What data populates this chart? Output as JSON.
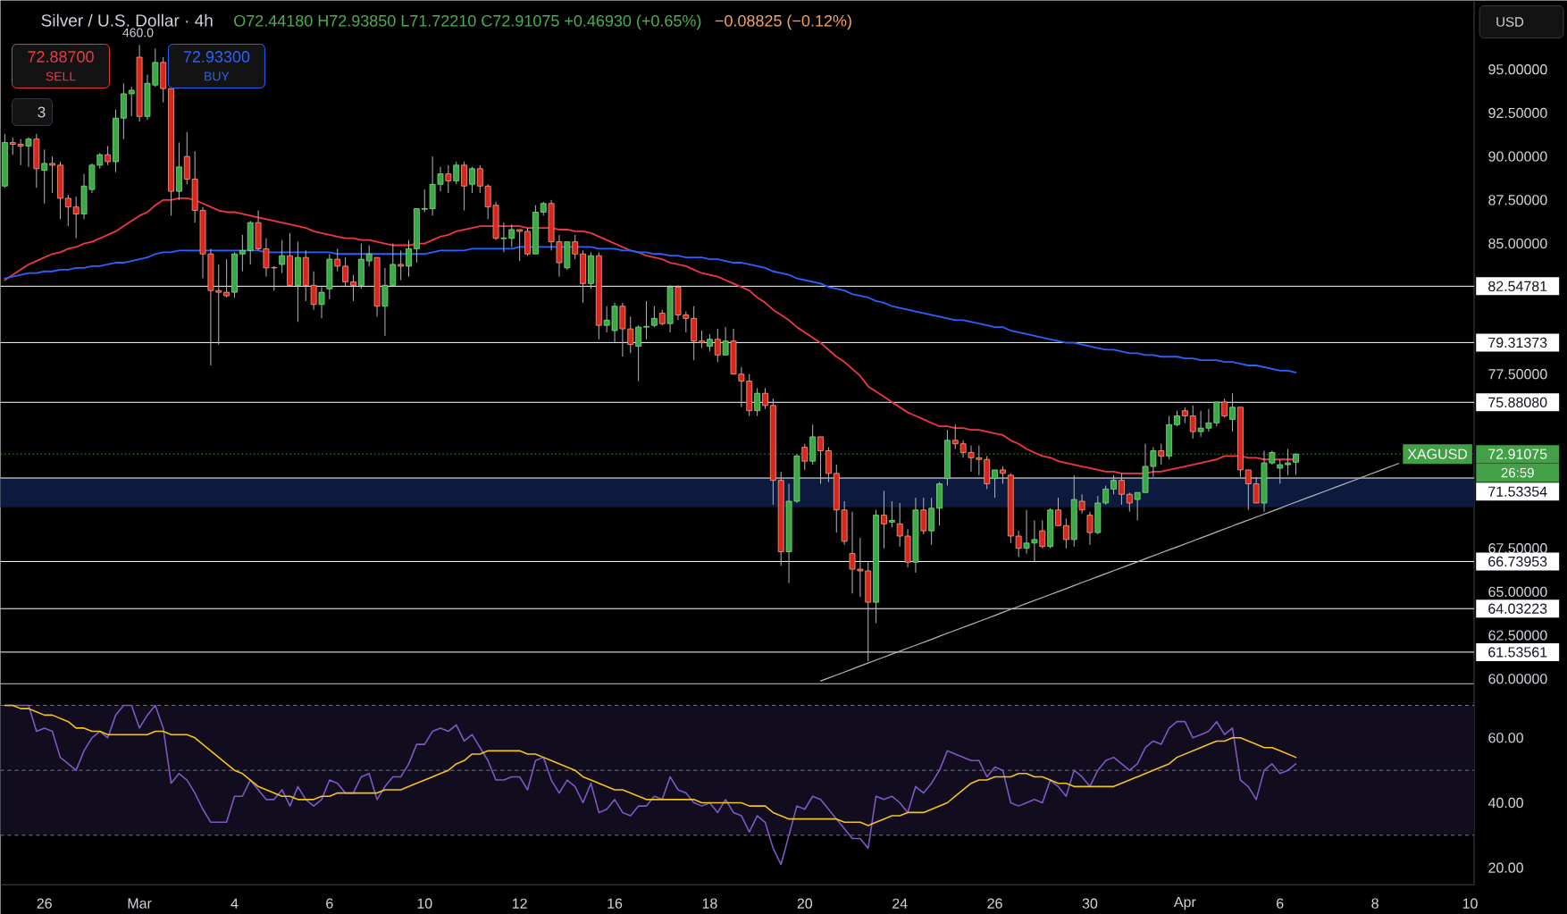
{
  "chart_data": [
    {
      "type": "candlestick",
      "title": "Silver / U.S. Dollar · 4h",
      "categories": [
        null,
        null,
        null,
        null,
        null,
        null,
        null,
        null,
        null,
        null,
        null,
        null,
        null,
        null,
        null,
        null,
        null,
        null,
        null,
        null,
        null,
        null,
        null,
        null,
        null,
        null,
        null,
        null,
        null,
        null,
        null,
        null,
        null,
        null,
        null,
        null,
        null,
        null,
        null,
        null,
        null,
        null,
        null,
        null,
        null,
        null,
        null,
        null,
        null,
        null,
        null,
        null,
        null,
        null,
        null,
        null,
        null,
        null,
        null,
        null,
        null,
        null,
        null,
        null,
        null,
        null,
        null,
        null,
        null,
        null,
        null,
        null,
        null,
        null,
        null,
        null,
        null,
        null,
        null,
        null,
        null,
        null,
        null,
        null,
        null,
        null,
        null,
        null,
        null,
        null,
        null,
        null,
        null,
        null,
        null,
        null,
        null,
        null,
        null,
        null,
        null,
        null,
        null,
        null,
        null,
        null,
        null,
        null,
        null,
        null,
        null,
        null,
        null,
        null,
        null,
        null,
        null,
        null,
        null,
        null,
        null,
        null,
        null,
        null,
        null,
        null,
        null,
        null,
        null,
        null,
        null,
        null,
        null,
        null,
        null,
        null,
        null,
        null,
        null,
        null,
        null,
        null,
        null,
        null,
        null,
        null,
        null,
        null,
        null,
        null,
        null,
        null,
        null,
        null,
        null,
        null,
        null,
        null,
        null,
        null,
        null,
        null,
        null,
        null,
        null,
        null,
        null,
        null,
        null,
        null,
        null,
        null,
        null,
        null,
        null,
        null,
        null,
        null,
        null,
        null,
        null,
        null,
        null,
        null,
        null,
        null
      ],
      "ohlc": [
        [
          88.3,
          91.3,
          88.2,
          90.8
        ],
        [
          90.8,
          91.1,
          90.1,
          90.7
        ],
        [
          90.7,
          91.0,
          89.5,
          90.6
        ],
        [
          90.6,
          91.1,
          89.4,
          91.0
        ],
        [
          91.0,
          91.3,
          88.2,
          89.3
        ],
        [
          89.2,
          90.4,
          87.3,
          89.6
        ],
        [
          89.6,
          90.0,
          87.9,
          89.5
        ],
        [
          89.5,
          89.7,
          86.4,
          87.6
        ],
        [
          87.6,
          87.8,
          86.0,
          87.1
        ],
        [
          87.1,
          87.7,
          85.3,
          86.7
        ],
        [
          86.7,
          89.0,
          86.4,
          88.3
        ],
        [
          88.1,
          89.6,
          87.9,
          89.5
        ],
        [
          89.5,
          90.2,
          89.3,
          90.1
        ],
        [
          90.1,
          90.6,
          89.5,
          89.7
        ],
        [
          89.7,
          92.7,
          89.1,
          92.2
        ],
        [
          92.2,
          94.2,
          91.0,
          93.6
        ],
        [
          93.6,
          94.0,
          92.3,
          93.8
        ],
        [
          95.7,
          96.4,
          92.0,
          92.3
        ],
        [
          92.3,
          94.7,
          92.1,
          94.2
        ],
        [
          94.1,
          96.2,
          94.0,
          95.4
        ],
        [
          95.4,
          95.7,
          93.1,
          93.9
        ],
        [
          93.9,
          93.9,
          86.6,
          88.0
        ],
        [
          88.0,
          90.8,
          87.5,
          89.4
        ],
        [
          90.0,
          91.4,
          88.4,
          88.7
        ],
        [
          88.7,
          90.3,
          86.2,
          86.9
        ],
        [
          86.9,
          87.1,
          83.0,
          84.4
        ],
        [
          84.4,
          84.7,
          78.0,
          82.3
        ],
        [
          82.3,
          83.8,
          79.2,
          82.2
        ],
        [
          82.2,
          84.1,
          81.9,
          82.0
        ],
        [
          82.2,
          84.5,
          81.9,
          84.4
        ],
        [
          84.4,
          85.5,
          83.4,
          84.6
        ],
        [
          84.6,
          86.3,
          83.8,
          86.2
        ],
        [
          86.2,
          86.9,
          84.6,
          84.7
        ],
        [
          84.7,
          85.3,
          83.1,
          83.6
        ],
        [
          83.62,
          83.7,
          82.3,
          83.6
        ],
        [
          83.8,
          85.2,
          83.3,
          84.3
        ],
        [
          84.3,
          85.6,
          82.5,
          82.6
        ],
        [
          82.6,
          85.1,
          80.5,
          84.2
        ],
        [
          84.2,
          84.6,
          81.7,
          82.6
        ],
        [
          82.6,
          83.4,
          81.2,
          81.5
        ],
        [
          81.5,
          82.5,
          80.7,
          82.2
        ],
        [
          82.4,
          84.4,
          81.8,
          84.1
        ],
        [
          84.1,
          84.7,
          83.4,
          83.7
        ],
        [
          83.7,
          84.2,
          82.5,
          82.8
        ],
        [
          82.8,
          83.2,
          81.7,
          82.6
        ],
        [
          82.6,
          85.0,
          82.4,
          84.1
        ],
        [
          84.0,
          84.9,
          83.7,
          84.4
        ],
        [
          84.2,
          84.2,
          80.8,
          81.4
        ],
        [
          81.4,
          83.6,
          79.7,
          82.6
        ],
        [
          82.6,
          85.0,
          82.5,
          83.8
        ],
        [
          83.8,
          84.6,
          82.9,
          83.7
        ],
        [
          83.7,
          85.2,
          83.1,
          84.7
        ],
        [
          84.7,
          87.0,
          83.9,
          87.0
        ],
        [
          86.97,
          88.1,
          86.8,
          87.01
        ],
        [
          87.0,
          90.0,
          86.6,
          88.4
        ],
        [
          88.4,
          89.4,
          88.0,
          89.0
        ],
        [
          89.0,
          89.5,
          87.9,
          88.6
        ],
        [
          88.6,
          89.7,
          88.4,
          89.5
        ],
        [
          89.5,
          89.7,
          86.9,
          88.3
        ],
        [
          88.4,
          89.4,
          87.9,
          89.3
        ],
        [
          89.3,
          89.5,
          87.9,
          88.3
        ],
        [
          88.3,
          88.4,
          86.4,
          87.1
        ],
        [
          87.2,
          87.4,
          85.2,
          85.3
        ],
        [
          85.28,
          86.2,
          84.5,
          85.32
        ],
        [
          85.3,
          86.1,
          84.8,
          85.8
        ],
        [
          85.8,
          85.8,
          84.0,
          85.7
        ],
        [
          85.7,
          85.9,
          84.3,
          84.4
        ],
        [
          84.4,
          87.2,
          84.4,
          86.8
        ],
        [
          86.8,
          87.4,
          86.6,
          87.3
        ],
        [
          87.3,
          87.5,
          84.6,
          85.1
        ],
        [
          85.1,
          85.5,
          83.1,
          83.9
        ],
        [
          83.6,
          85.1,
          83.5,
          85.1
        ],
        [
          85.1,
          85.5,
          84.1,
          84.4
        ],
        [
          84.4,
          84.6,
          81.6,
          82.7
        ],
        [
          82.7,
          84.5,
          82.4,
          84.3
        ],
        [
          84.3,
          84.5,
          79.5,
          80.3
        ],
        [
          80.3,
          81.4,
          79.9,
          80.6
        ],
        [
          80.0,
          81.6,
          79.3,
          81.4
        ],
        [
          81.4,
          81.6,
          78.5,
          80.1
        ],
        [
          80.1,
          80.8,
          78.7,
          79.2
        ],
        [
          79.1,
          80.3,
          77.1,
          80.2
        ],
        [
          80.2,
          81.7,
          79.5,
          80.24
        ],
        [
          80.3,
          81.4,
          80.2,
          80.7
        ],
        [
          81.0,
          81.2,
          80.3,
          80.4
        ],
        [
          80.4,
          82.6,
          79.9,
          82.5
        ],
        [
          82.5,
          82.6,
          80.6,
          80.9
        ],
        [
          80.9,
          81.1,
          79.9,
          80.7
        ],
        [
          80.7,
          81.4,
          78.3,
          79.4
        ],
        [
          79.4,
          80.0,
          79.0,
          79.3
        ],
        [
          79.1,
          79.8,
          78.8,
          79.5
        ],
        [
          79.5,
          80.1,
          78.2,
          78.6
        ],
        [
          78.6,
          80.2,
          78.6,
          79.4
        ],
        [
          79.4,
          80.1,
          77.5,
          77.5
        ],
        [
          77.5,
          77.9,
          75.6,
          77.1
        ],
        [
          77.1,
          77.5,
          75.1,
          75.4
        ],
        [
          75.4,
          76.7,
          75.1,
          76.4
        ],
        [
          76.4,
          76.7,
          75.5,
          75.7
        ],
        [
          75.7,
          76.1,
          70.0,
          71.4
        ],
        [
          71.4,
          71.9,
          66.5,
          67.3
        ],
        [
          67.3,
          71.2,
          65.5,
          70.2
        ],
        [
          70.2,
          72.9,
          70.1,
          72.8
        ],
        [
          73.3,
          73.5,
          72.0,
          72.5
        ],
        [
          72.5,
          74.6,
          72.3,
          73.9
        ],
        [
          73.9,
          73.9,
          71.2,
          73.1
        ],
        [
          73.1,
          73.3,
          71.3,
          71.8
        ],
        [
          71.8,
          72.3,
          68.4,
          69.7
        ],
        [
          69.7,
          70.2,
          67.7,
          67.9
        ],
        [
          67.2,
          69.6,
          64.9,
          66.3
        ],
        [
          66.3,
          68.1,
          64.7,
          66.2
        ],
        [
          66.2,
          66.7,
          61.0,
          64.4
        ],
        [
          64.4,
          69.7,
          63.2,
          69.4
        ],
        [
          69.4,
          70.8,
          67.5,
          68.9
        ],
        [
          69.0,
          70.2,
          68.7,
          69.1
        ],
        [
          68.9,
          70.1,
          67.6,
          68.2
        ],
        [
          68.2,
          68.6,
          66.4,
          66.7
        ],
        [
          66.7,
          70.4,
          66.1,
          69.7
        ],
        [
          69.7,
          70.4,
          68.3,
          68.5
        ],
        [
          68.5,
          70.4,
          67.7,
          69.8
        ],
        [
          69.8,
          71.3,
          68.8,
          71.2
        ],
        [
          71.5,
          74.3,
          71.1,
          73.7
        ],
        [
          73.7,
          74.6,
          73.2,
          73.5
        ],
        [
          73.5,
          73.7,
          72.7,
          73.0
        ],
        [
          73.0,
          73.4,
          71.9,
          72.7
        ],
        [
          72.7,
          73.4,
          71.7,
          72.6
        ],
        [
          72.6,
          72.8,
          70.9,
          71.2
        ],
        [
          71.5,
          72.0,
          70.4,
          72.0
        ],
        [
          72.0,
          72.2,
          71.2,
          71.8
        ],
        [
          71.7,
          71.8,
          67.8,
          68.2
        ],
        [
          68.2,
          68.5,
          67.0,
          67.5
        ],
        [
          67.5,
          69.7,
          67.2,
          67.8
        ],
        [
          67.8,
          69.1,
          66.7,
          68.0
        ],
        [
          68.5,
          69.1,
          67.5,
          67.6
        ],
        [
          67.6,
          69.8,
          67.5,
          69.7
        ],
        [
          69.7,
          70.4,
          68.8,
          68.8
        ],
        [
          68.8,
          69.2,
          67.5,
          68.0
        ],
        [
          68.0,
          71.7,
          67.6,
          70.3
        ],
        [
          70.2,
          70.6,
          69.5,
          69.7
        ],
        [
          69.4,
          69.6,
          67.7,
          68.4
        ],
        [
          68.4,
          70.5,
          68.3,
          70.1
        ],
        [
          70.1,
          71.1,
          70.0,
          70.9
        ],
        [
          70.9,
          71.7,
          70.6,
          71.4
        ],
        [
          71.4,
          71.8,
          70.0,
          70.6
        ],
        [
          70.6,
          70.7,
          69.6,
          70.1
        ],
        [
          70.3,
          70.7,
          69.1,
          70.7
        ],
        [
          70.7,
          73.5,
          70.7,
          72.2
        ],
        [
          72.2,
          73.3,
          71.6,
          73.1
        ],
        [
          73.1,
          73.5,
          72.3,
          72.8
        ],
        [
          72.8,
          75.1,
          72.6,
          74.6
        ],
        [
          74.6,
          75.4,
          74.5,
          75.1
        ],
        [
          75.4,
          75.6,
          74.7,
          75.1
        ],
        [
          75.1,
          75.7,
          73.8,
          74.2
        ],
        [
          74.2,
          75.4,
          73.9,
          74.4
        ],
        [
          74.4,
          75.5,
          74.2,
          74.7
        ],
        [
          74.7,
          75.9,
          74.5,
          75.9
        ],
        [
          75.9,
          76.1,
          75.0,
          75.1
        ],
        [
          74.9,
          76.4,
          74.2,
          75.6
        ],
        [
          75.6,
          75.6,
          71.6,
          72.0
        ],
        [
          72.0,
          72.0,
          69.7,
          71.2
        ],
        [
          71.2,
          71.6,
          70.1,
          70.1
        ],
        [
          70.1,
          73.1,
          69.6,
          72.4
        ],
        [
          72.4,
          73.1,
          72.3,
          73.0
        ],
        [
          72.1,
          72.6,
          71.2,
          72.3
        ],
        [
          72.3,
          73.2,
          71.7,
          72.4
        ],
        [
          72.4418,
          72.9385,
          71.7221,
          72.91075
        ],
        null,
        null,
        null,
        null,
        null,
        null,
        null,
        null,
        null,
        null,
        null,
        null,
        null,
        null,
        null,
        null,
        null,
        null,
        null,
        null,
        null,
        null
      ],
      "series": [
        {
          "type": "line",
          "color": "#f23645",
          "values": [
            82.9,
            83.2,
            83.5,
            83.8,
            84.0,
            84.2,
            84.4,
            84.5,
            84.7,
            84.8,
            85.0,
            85.1,
            85.3,
            85.5,
            85.7,
            86.0,
            86.3,
            86.6,
            86.8,
            87.2,
            87.5,
            87.5,
            87.6,
            87.6,
            87.5,
            87.3,
            87.1,
            86.9,
            86.8,
            86.8,
            86.7,
            86.6,
            86.5,
            86.4,
            86.3,
            86.2,
            86.1,
            86.0,
            85.9,
            85.7,
            85.6,
            85.5,
            85.4,
            85.3,
            85.3,
            85.2,
            85.2,
            85.1,
            85.0,
            84.9,
            84.9,
            84.9,
            85.0,
            85.0,
            85.2,
            85.4,
            85.5,
            85.7,
            85.8,
            85.9,
            86.0,
            86.0,
            86.0,
            86.0,
            86.0,
            86.0,
            85.9,
            85.9,
            85.9,
            85.9,
            85.8,
            85.8,
            85.7,
            85.7,
            85.6,
            85.4,
            85.2,
            85.0,
            84.8,
            84.6,
            84.5,
            84.3,
            84.2,
            84.1,
            83.9,
            83.8,
            83.7,
            83.5,
            83.3,
            83.2,
            83.1,
            82.9,
            82.7,
            82.5,
            82.3,
            81.9,
            81.6,
            81.2,
            80.9,
            80.6,
            80.2,
            79.9,
            79.6,
            79.3,
            78.9,
            78.5,
            78.2,
            77.8,
            77.4,
            76.8,
            76.5,
            76.2,
            75.9,
            75.6,
            75.3,
            75.1,
            74.9,
            74.7,
            74.5,
            74.5,
            74.4,
            74.4,
            74.3,
            74.3,
            74.2,
            74.1,
            74.0,
            73.7,
            73.5,
            73.2,
            73.0,
            72.8,
            72.7,
            72.5,
            72.4,
            72.3,
            72.2,
            72.1,
            72.0,
            71.9,
            71.9,
            71.8,
            71.8,
            71.8,
            71.8,
            71.9,
            71.9,
            72.0,
            72.1,
            72.2,
            72.3,
            72.4,
            72.5,
            72.6,
            72.8,
            72.8,
            72.8,
            72.7,
            72.7,
            72.6,
            72.6,
            72.6,
            72.6,
            72.6,
            null,
            null,
            null,
            null,
            null,
            null,
            null,
            null,
            null,
            null,
            null,
            null,
            null,
            null,
            null,
            null,
            null,
            null,
            null,
            null,
            null,
            null
          ]
        },
        {
          "type": "line",
          "color": "#2962ff",
          "values": [
            83.0,
            83.1,
            83.2,
            83.3,
            83.3,
            83.4,
            83.4,
            83.5,
            83.5,
            83.6,
            83.6,
            83.7,
            83.7,
            83.8,
            83.9,
            83.9,
            84.0,
            84.1,
            84.2,
            84.4,
            84.5,
            84.5,
            84.6,
            84.6,
            84.6,
            84.6,
            84.6,
            84.6,
            84.6,
            84.6,
            84.6,
            84.6,
            84.6,
            84.5,
            84.5,
            84.5,
            84.5,
            84.5,
            84.5,
            84.5,
            84.5,
            84.5,
            84.4,
            84.4,
            84.4,
            84.4,
            84.4,
            84.4,
            84.4,
            84.4,
            84.4,
            84.4,
            84.4,
            84.4,
            84.5,
            84.6,
            84.6,
            84.6,
            84.6,
            84.7,
            84.7,
            84.7,
            84.7,
            84.7,
            84.7,
            84.8,
            84.8,
            84.8,
            84.8,
            84.8,
            84.8,
            84.8,
            84.8,
            84.8,
            84.8,
            84.7,
            84.7,
            84.7,
            84.6,
            84.6,
            84.5,
            84.5,
            84.4,
            84.4,
            84.3,
            84.3,
            84.2,
            84.2,
            84.2,
            84.1,
            84.1,
            84.0,
            83.9,
            83.9,
            83.8,
            83.7,
            83.6,
            83.4,
            83.3,
            83.2,
            83.0,
            82.9,
            82.8,
            82.7,
            82.5,
            82.4,
            82.3,
            82.1,
            82.0,
            81.9,
            81.7,
            81.6,
            81.4,
            81.3,
            81.2,
            81.1,
            81.0,
            80.9,
            80.8,
            80.7,
            80.6,
            80.6,
            80.5,
            80.4,
            80.3,
            80.2,
            80.2,
            80.0,
            79.9,
            79.8,
            79.7,
            79.6,
            79.5,
            79.4,
            79.3,
            79.3,
            79.2,
            79.1,
            79.0,
            78.9,
            78.9,
            78.8,
            78.7,
            78.7,
            78.6,
            78.6,
            78.5,
            78.5,
            78.5,
            78.4,
            78.4,
            78.3,
            78.3,
            78.3,
            78.2,
            78.2,
            78.1,
            78.0,
            78.0,
            77.9,
            77.8,
            77.7,
            77.7,
            77.6,
            null,
            null,
            null,
            null,
            null,
            null,
            null,
            null,
            null,
            null,
            null,
            null,
            null,
            null,
            null,
            null,
            null,
            null,
            null,
            null,
            null,
            null
          ]
        },
        {
          "type": "line",
          "color": "#b2b5be",
          "values": [
            null,
            null,
            null,
            null,
            null,
            null,
            null,
            null,
            null,
            null,
            null,
            null,
            null,
            null,
            null,
            null,
            null,
            null,
            null,
            null,
            null,
            null,
            null,
            null,
            null,
            null,
            null,
            null,
            null,
            null,
            null,
            null,
            null,
            null,
            null,
            null,
            null,
            null,
            null,
            null,
            null,
            null,
            null,
            null,
            null,
            null,
            null,
            null,
            null,
            null,
            null,
            null,
            null,
            null,
            null,
            null,
            null,
            null,
            null,
            null,
            null,
            null,
            null,
            null,
            null,
            null,
            null,
            null,
            null,
            null,
            null,
            null,
            null,
            null,
            null,
            null,
            null,
            null,
            null,
            null,
            null,
            null,
            null,
            null,
            null,
            null,
            null,
            null,
            null,
            null,
            null,
            null,
            null,
            null,
            null,
            null,
            null,
            null,
            null,
            null,
            null,
            null,
            null,
            59.88,
            60.05,
            60.22,
            60.39,
            60.56,
            60.74,
            60.91,
            61.08,
            61.25,
            61.42,
            61.59,
            61.76,
            61.93,
            62.1,
            62.27,
            62.45,
            62.62,
            62.79,
            62.96,
            63.13,
            63.3,
            63.47,
            63.64,
            63.82,
            63.99,
            64.16,
            64.33,
            64.5,
            64.67,
            64.84,
            65.01,
            65.18,
            65.36,
            65.53,
            65.7,
            65.87,
            66.04,
            66.21,
            66.38,
            66.55,
            66.72,
            66.9,
            67.07,
            67.24,
            67.41,
            67.58,
            67.75,
            67.92,
            68.09,
            68.26,
            68.44,
            68.61,
            68.78,
            68.95,
            69.12,
            69.29,
            69.46,
            69.63,
            69.8,
            69.98,
            70.15,
            70.32,
            70.49,
            70.66,
            70.83,
            71.0,
            71.17,
            71.34,
            71.51,
            71.69,
            71.86,
            72.03,
            72.2,
            72.37,
            null,
            null,
            null,
            null,
            null,
            null,
            null,
            null,
            null
          ]
        }
      ],
      "ylim": [
        59.72,
        98.96
      ],
      "yticks": [
        {
          "value": 60,
          "label": "60.00000"
        },
        {
          "value": 62.5,
          "label": "62.50000"
        },
        {
          "value": 65,
          "label": "65.00000"
        },
        {
          "value": 67.5,
          "label": "67.50000"
        },
        {
          "value": 77.5,
          "label": "77.50000"
        },
        {
          "value": 85,
          "label": "85.00000"
        },
        {
          "value": 87.5,
          "label": "87.50000"
        },
        {
          "value": 90,
          "label": "90.00000"
        },
        {
          "value": 92.5,
          "label": "92.50000"
        },
        {
          "value": 95,
          "label": "95.00000"
        }
      ],
      "tick_labels": "y",
      "ref_lines": [
        {
          "axis": "y",
          "value": 72.91075,
          "label": "72.91075",
          "color": "#43a047",
          "line_style": "dotted"
        },
        {
          "axis": "y",
          "value": 82.54781,
          "label": "82.54781",
          "color": "#ffffff",
          "line_style": "solid"
        },
        {
          "axis": "y",
          "value": 79.31373,
          "label": "79.31373",
          "color": "#ffffff",
          "line_style": "solid"
        },
        {
          "axis": "y",
          "value": 75.8808,
          "label": "75.88080",
          "color": "#ffffff",
          "line_style": "solid"
        },
        {
          "axis": "y",
          "value": 71.53354,
          "label": "71.53354",
          "color": "#ffffff",
          "line_style": "solid"
        },
        {
          "axis": "y",
          "value": 66.73953,
          "label": "66.73953",
          "color": "#ffffff",
          "line_style": "solid"
        },
        {
          "axis": "y",
          "value": 64.03223,
          "label": "64.03223",
          "color": "#ffffff",
          "line_style": "solid"
        },
        {
          "axis": "y",
          "value": 61.53561,
          "label": "61.53561",
          "color": "#ffffff",
          "line_style": "solid"
        }
      ],
      "bands": [
        {
          "axis": "y",
          "from": 69.86,
          "to": 71.53354,
          "color": "#0c1a3e"
        }
      ],
      "annotations": [
        "O72.44180 H72.93850 L71.72210 C72.91075 +0.46930 (+0.65%)",
        "−0.08825 (−0.12%)",
        "72.88700",
        "SELL",
        "460.0",
        "72.93300",
        "BUY",
        "3",
        "USD",
        "XAGUSD",
        "26:59"
      ]
    },
    {
      "type": "line",
      "categories": [
        null,
        null,
        null,
        null,
        null,
        "26",
        null,
        null,
        null,
        null,
        null,
        null,
        null,
        null,
        null,
        null,
        null,
        "Mar",
        null,
        null,
        null,
        null,
        null,
        null,
        null,
        null,
        null,
        null,
        null,
        "4",
        null,
        null,
        null,
        null,
        null,
        null,
        null,
        null,
        null,
        null,
        null,
        "6",
        null,
        null,
        null,
        null,
        null,
        null,
        null,
        null,
        null,
        null,
        null,
        "10",
        null,
        null,
        null,
        null,
        null,
        null,
        null,
        null,
        null,
        null,
        null,
        "12",
        null,
        null,
        null,
        null,
        null,
        null,
        null,
        null,
        null,
        null,
        null,
        "16",
        null,
        null,
        null,
        null,
        null,
        null,
        null,
        null,
        null,
        null,
        null,
        "18",
        null,
        null,
        null,
        null,
        null,
        null,
        null,
        null,
        null,
        null,
        null,
        "20",
        null,
        null,
        null,
        null,
        null,
        null,
        null,
        null,
        null,
        null,
        null,
        "24",
        null,
        null,
        null,
        null,
        null,
        null,
        null,
        null,
        null,
        null,
        null,
        "26",
        null,
        null,
        null,
        null,
        null,
        null,
        null,
        null,
        null,
        null,
        null,
        "30",
        null,
        null,
        null,
        null,
        null,
        null,
        null,
        null,
        null,
        null,
        null,
        "Apr",
        null,
        null,
        null,
        null,
        null,
        null,
        null,
        null,
        null,
        null,
        null,
        "6",
        null,
        null,
        null,
        null,
        null,
        null,
        null,
        null,
        null,
        null,
        null,
        "8",
        null,
        null,
        null,
        null,
        null,
        null,
        null,
        null,
        null,
        null,
        null,
        "10"
      ],
      "series": [
        {
          "color": "#7e57c2",
          "values": [
            70,
            70,
            70,
            70,
            62,
            63,
            62,
            54,
            52,
            50,
            56,
            60,
            62,
            60,
            67,
            70,
            70,
            63,
            67,
            70,
            63,
            46,
            49,
            47,
            43,
            38,
            34,
            34,
            34,
            42,
            42,
            47,
            44,
            41,
            41,
            44,
            39,
            45,
            41,
            39,
            41,
            47,
            46,
            43,
            43,
            48,
            49,
            41,
            45,
            48,
            48,
            52,
            58,
            58,
            62,
            63,
            62,
            64,
            59,
            61,
            57,
            53,
            47,
            47,
            48,
            48,
            44,
            53,
            54,
            47,
            43,
            47,
            45,
            40,
            46,
            37,
            38,
            41,
            37,
            36,
            39,
            39,
            42,
            41,
            48,
            44,
            43,
            40,
            39,
            40,
            37,
            41,
            37,
            36,
            31,
            36,
            34,
            26,
            21,
            30,
            39,
            38,
            42,
            41,
            38,
            35,
            32,
            29,
            29,
            26,
            42,
            41,
            42,
            40,
            37,
            45,
            43,
            46,
            50,
            56,
            55,
            54,
            53,
            53,
            48,
            51,
            50,
            40,
            39,
            40,
            41,
            40,
            47,
            45,
            42,
            50,
            48,
            45,
            50,
            53,
            54,
            52,
            50,
            52,
            57,
            59,
            58,
            63,
            65,
            65,
            60,
            61,
            62,
            65,
            61,
            63,
            47,
            45,
            41,
            50,
            52,
            49,
            50,
            52,
            null,
            null,
            null,
            null,
            null,
            null,
            null,
            null,
            null,
            null,
            null,
            null,
            null,
            null,
            null,
            null,
            null,
            null,
            null,
            null,
            null,
            null
          ]
        },
        {
          "color": "#f2c31b",
          "values": [
            70,
            70,
            69,
            69,
            68,
            67,
            67,
            66,
            65,
            63,
            63,
            62,
            62,
            61,
            61,
            61,
            61,
            61,
            61,
            62,
            62,
            61,
            61,
            61,
            60,
            58,
            56,
            54,
            52,
            50,
            49,
            47,
            45,
            44,
            43,
            42,
            42,
            41,
            41,
            41,
            42,
            42,
            43,
            43,
            43,
            43,
            43,
            43,
            44,
            44,
            44,
            45,
            46,
            47,
            48,
            49,
            50,
            52,
            53,
            55,
            55,
            56,
            56,
            56,
            56,
            56,
            55,
            55,
            54,
            53,
            52,
            51,
            50,
            48,
            47,
            46,
            45,
            44,
            44,
            43,
            42,
            41,
            41,
            41,
            41,
            41,
            41,
            41,
            40,
            40,
            40,
            40,
            40,
            40,
            39,
            39,
            39,
            37,
            36,
            35,
            35,
            35,
            35,
            35,
            35,
            35,
            34,
            34,
            34,
            33,
            34,
            35,
            36,
            36,
            37,
            37,
            37,
            38,
            39,
            40,
            42,
            44,
            46,
            47,
            47,
            48,
            48,
            48,
            49,
            49,
            48,
            48,
            47,
            46,
            46,
            45,
            45,
            45,
            45,
            45,
            45,
            46,
            47,
            48,
            49,
            50,
            51,
            52,
            54,
            55,
            56,
            57,
            58,
            59,
            59,
            60,
            60,
            59,
            58,
            57,
            57,
            56,
            55,
            54,
            null,
            null,
            null,
            null,
            null,
            null,
            null,
            null,
            null,
            null,
            null,
            null,
            null,
            null,
            null,
            null,
            null,
            null,
            null,
            null,
            null,
            null
          ]
        }
      ],
      "ylim": [
        14.76,
        76.66
      ],
      "yticks": [
        {
          "value": 20,
          "label": "20.00"
        },
        {
          "value": 40,
          "label": "40.00"
        },
        {
          "value": 60,
          "label": "60.00"
        }
      ],
      "ref_lines": [
        {
          "axis": "y",
          "value": 70,
          "color": "#787b86",
          "line_style": "dashed"
        },
        {
          "axis": "y",
          "value": 50,
          "color": "#787b86",
          "line_style": "dashed"
        },
        {
          "axis": "y",
          "value": 30,
          "color": "#787b86",
          "line_style": "dashed"
        }
      ],
      "bands": [
        {
          "axis": "y",
          "from": 30,
          "to": 70,
          "color": "#110d1f"
        }
      ]
    }
  ]
}
